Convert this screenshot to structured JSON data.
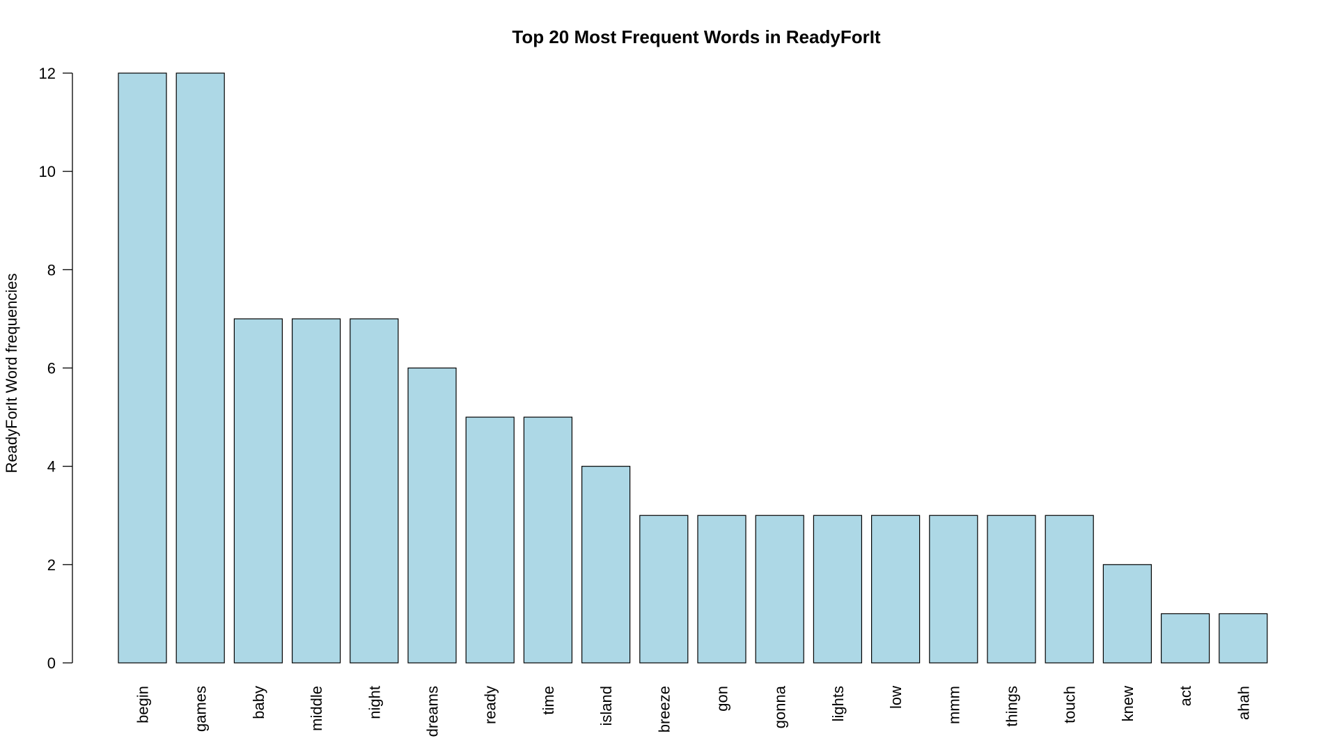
{
  "chart_data": {
    "type": "bar",
    "title": "Top 20 Most Frequent Words in ReadyForIt",
    "xlabel": "",
    "ylabel": "ReadyForIt Word frequencies",
    "categories": [
      "begin",
      "games",
      "baby",
      "middle",
      "night",
      "dreams",
      "ready",
      "time",
      "island",
      "breeze",
      "gon",
      "gonna",
      "lights",
      "low",
      "mmm",
      "things",
      "touch",
      "knew",
      "act",
      "ahah"
    ],
    "values": [
      12,
      12,
      7,
      7,
      7,
      6,
      5,
      5,
      4,
      3,
      3,
      3,
      3,
      3,
      3,
      3,
      3,
      2,
      1,
      1
    ],
    "ylim": [
      0,
      12
    ],
    "yticks": [
      0,
      2,
      4,
      6,
      8,
      10,
      12
    ],
    "bar_color": "#add8e6",
    "bar_border": "#000000",
    "grid": false,
    "legend": "none"
  }
}
